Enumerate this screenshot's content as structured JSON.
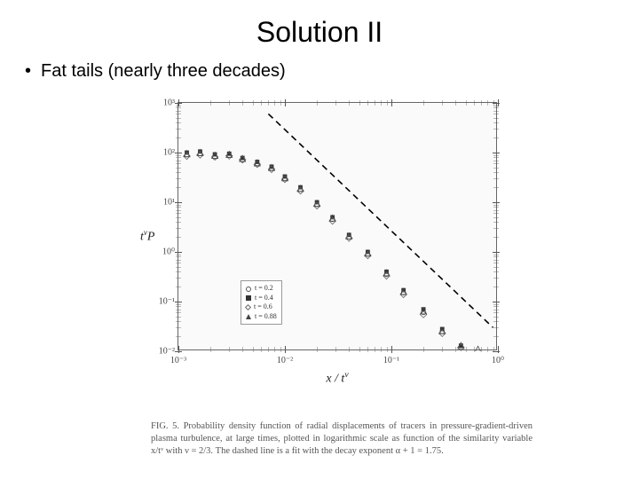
{
  "title": "Solution II",
  "bullet": "Fat tails (nearly three decades)",
  "chart": {
    "type": "scatter-loglog",
    "xlabel": "x / t",
    "xlabel_sup": "ν",
    "ylabel_pre": "t",
    "ylabel_sup": "ν",
    "ylabel_post": "P",
    "xlim": [
      0.001,
      1
    ],
    "ylim": [
      0.01,
      1000
    ],
    "xticks": [
      0.001,
      0.01,
      0.1,
      1
    ],
    "xtick_labels": [
      "10⁻³",
      "10⁻²",
      "10⁻¹",
      "10⁰"
    ],
    "yticks": [
      0.01,
      0.1,
      1,
      10,
      100,
      1000
    ],
    "ytick_labels": [
      "10⁻²",
      "10⁻¹",
      "10⁰",
      "10¹",
      "10²",
      "10³"
    ],
    "dashed_line": {
      "x1": 0.007,
      "y1": 600,
      "x2": 0.9,
      "y2": 0.03,
      "width": 1.6,
      "dash": "7 5",
      "color": "#000000"
    },
    "series": [
      {
        "label": "t = 0.2",
        "marker": "circle",
        "color": "#555555",
        "x": [
          0.0012,
          0.0016,
          0.0022,
          0.003,
          0.004,
          0.0055,
          0.0075,
          0.01,
          0.014,
          0.02,
          0.028,
          0.04,
          0.06,
          0.09,
          0.13,
          0.2,
          0.3
        ],
        "y": [
          90,
          95,
          80,
          88,
          70,
          60,
          48,
          30,
          18,
          9,
          4.5,
          2,
          0.9,
          0.35,
          0.15,
          0.06,
          0.025
        ]
      },
      {
        "label": "t = 0.4",
        "marker": "square",
        "color": "#333333",
        "x": [
          0.0012,
          0.0016,
          0.0022,
          0.003,
          0.004,
          0.0055,
          0.0075,
          0.01,
          0.014,
          0.02,
          0.028,
          0.04,
          0.06,
          0.09,
          0.13,
          0.2,
          0.3,
          0.45
        ],
        "y": [
          100,
          105,
          92,
          95,
          78,
          65,
          52,
          33,
          20,
          10,
          5,
          2.2,
          1,
          0.4,
          0.17,
          0.07,
          0.028,
          0.013
        ]
      },
      {
        "label": "t = 0.6",
        "marker": "diamond",
        "color": "#666666",
        "x": [
          0.0012,
          0.0016,
          0.0022,
          0.003,
          0.004,
          0.0055,
          0.0075,
          0.01,
          0.014,
          0.02,
          0.028,
          0.04,
          0.06,
          0.09,
          0.13,
          0.2,
          0.3,
          0.45
        ],
        "y": [
          85,
          90,
          82,
          86,
          72,
          58,
          46,
          29,
          17,
          8.5,
          4.2,
          1.9,
          0.85,
          0.33,
          0.14,
          0.055,
          0.023,
          0.012
        ]
      },
      {
        "label": "t = 0.88",
        "marker": "triangle",
        "color": "#444444",
        "x": [
          0.0012,
          0.0016,
          0.0022,
          0.003,
          0.004,
          0.0055,
          0.0075,
          0.01,
          0.014,
          0.02,
          0.028,
          0.04,
          0.06,
          0.09,
          0.13,
          0.2,
          0.3,
          0.45,
          0.65
        ],
        "y": [
          95,
          100,
          88,
          92,
          76,
          62,
          50,
          31,
          19,
          9.5,
          4.8,
          2.1,
          0.95,
          0.38,
          0.16,
          0.065,
          0.026,
          0.013,
          0.011
        ]
      }
    ],
    "background_color": "#fafafa",
    "border_color": "#666666",
    "marker_size": 3
  },
  "caption": "FIG. 5. Probability density function of radial displacements of tracers in pressure-gradient-driven plasma turbulence, at large times, plotted in logarithmic scale as function of the similarity variable x/tᵛ with ν = 2/3. The dashed line is a fit with the decay exponent α + 1 = 1.75."
}
